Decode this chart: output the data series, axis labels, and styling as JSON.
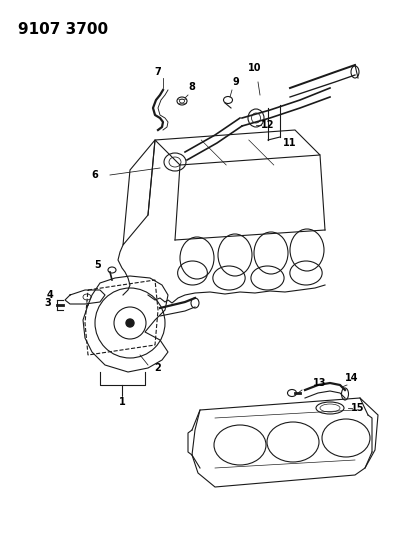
{
  "title": "9107 3700",
  "background_color": "#ffffff",
  "line_color": "#1a1a1a",
  "title_fontsize": 11,
  "label_fontsize": 7,
  "fig_width": 4.11,
  "fig_height": 5.33,
  "dpi": 100
}
